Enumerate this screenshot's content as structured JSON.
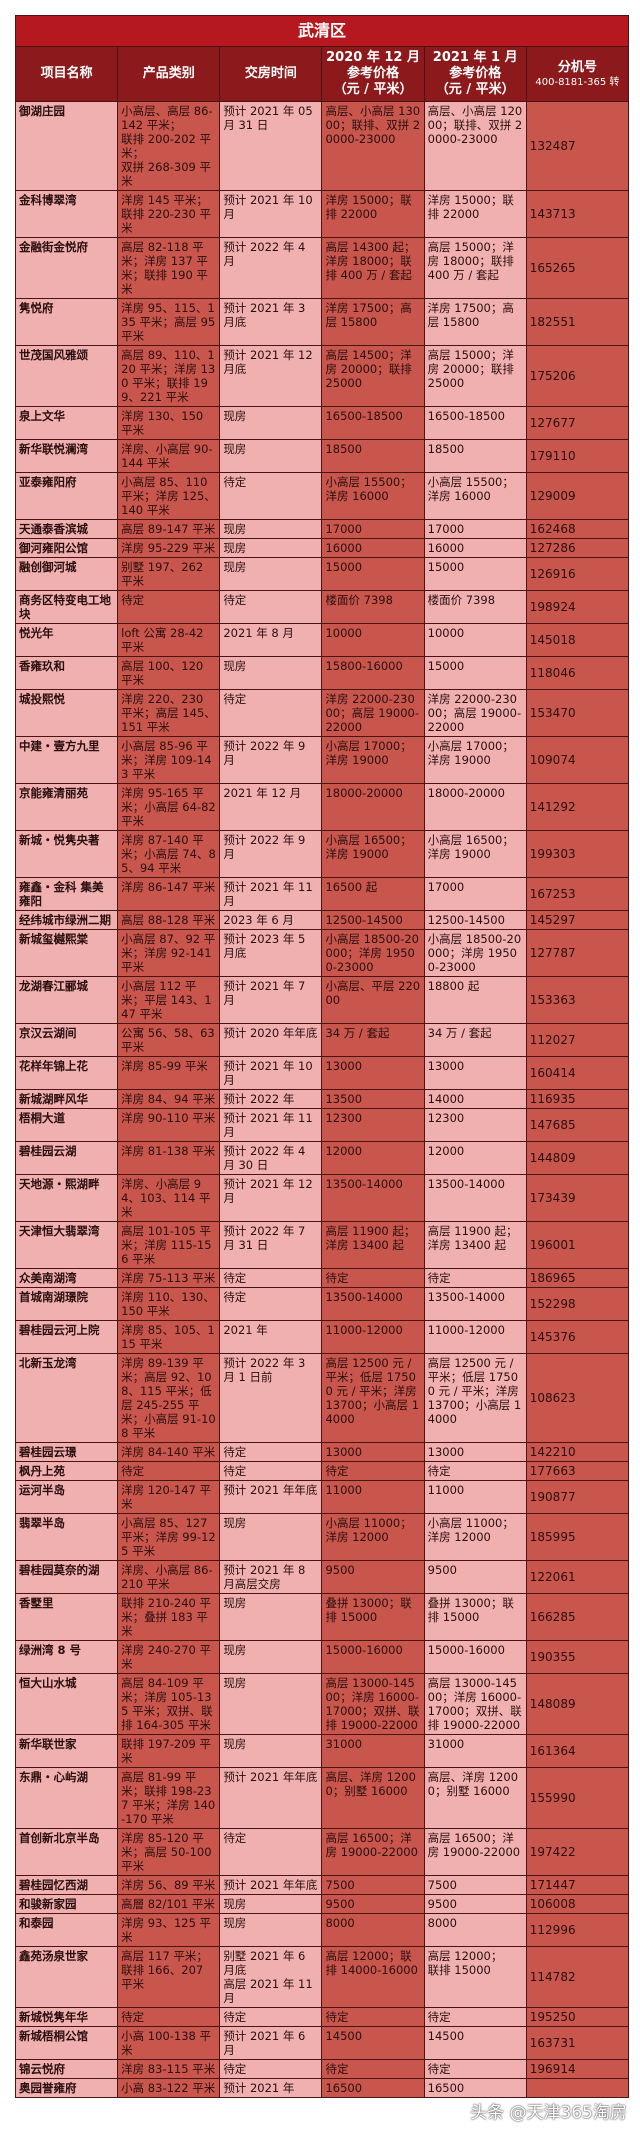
{
  "title": "武清区",
  "headers": [
    "项目名称",
    "产品类别",
    "交房时间",
    "2020 年 12 月\n参考价格\n（元 / 平米）",
    "2021 年 1 月\n参考价格\n（元 / 平米）",
    "分机号"
  ],
  "extension_note": "400-8181-365 转",
  "colors": {
    "title_bg": "#b5191f",
    "header_bg": "#8c1a1c",
    "light_col": "#f1b0b0",
    "dark_col": "#c8564d"
  },
  "rows": [
    [
      "御湖庄园",
      "小高层、高层 86-142 平米；\n联排 200-202 平米；\n双拼 268-309 平米",
      "预计 2021 年 05 月 31 日",
      "高层、小高层 13000；联排、双拼 20000-23000",
      "高层、小高层 12000；联排、双拼 20000-23000",
      "132487"
    ],
    [
      "金科博翠湾",
      "洋房 145 平米；联排 220-230 平米",
      "预计 2021 年 10 月",
      "洋房 15000；联排 22000",
      "洋房 15000；联排 22000",
      "143713"
    ],
    [
      "金融街金悦府",
      "高层 82-118 平米；洋房 137 平米；联排 190 平米",
      "预计 2022 年 4 月",
      "高层 14300 起；洋房 18000；联排 400 万 / 套起",
      "高层 15000；洋房 18000；联排 400 万 / 套起",
      "165265"
    ],
    [
      "隽悦府",
      "洋房 95、115、135 平米；高层 95 平米",
      "预计 2021 年 3 月底",
      "洋房 17500；高层 15800",
      "洋房 17500；高层 15800",
      "182551"
    ],
    [
      "世茂国风雅颂",
      "高层 89、110、120 平米；洋房 130 平米；联排 199、221 平米",
      "预计 2021 年 12 月底",
      "高层 14500；洋房 20000；联排 25000",
      "高层 15000；洋房 20000；联排 25000",
      "175206"
    ],
    [
      "泉上文华",
      "洋房 130、150 平米",
      "现房",
      "16500-18500",
      "16500-18500",
      "127677"
    ],
    [
      "新华联悦澜湾",
      "洋房、小高层 90-144 平米",
      "现房",
      "18500",
      "18500",
      "179110"
    ],
    [
      "亚泰雍阳府",
      "小高层 85、110 平米；洋房 125、140 平米",
      "待定",
      "小高层 15500；洋房 16000",
      "小高层 15500；洋房 16000",
      "129009"
    ],
    [
      "天通泰香滨城",
      "高层 89-147 平米",
      "现房",
      "17000",
      "17000",
      "162468"
    ],
    [
      "御河雍阳公馆",
      "洋房 95-229 平米",
      "现房",
      "16000",
      "16000",
      "127286"
    ],
    [
      "融创御河城",
      "别墅 197、262 平米",
      "现房",
      "15000",
      "15000",
      "126916"
    ],
    [
      "商务区特变电工地块",
      "待定",
      "待定",
      "楼面价 7398",
      "楼面价 7398",
      "198924"
    ],
    [
      "悦光年",
      "loft 公寓 28-42 平米",
      "2021 年 8 月",
      "10000",
      "10000",
      "145018"
    ],
    [
      "香雍玖和",
      "高层 100、120 平米",
      "现房",
      "15800-16000",
      "15000",
      "118046"
    ],
    [
      "城投熙悦",
      "洋房 220、230 平米；高层 145、151 平米",
      "待定",
      "洋房 22000-23000；高层 19000-22000",
      "洋房 22000-23000；高层 19000-22000",
      "153470"
    ],
    [
      "中建・壹方九里",
      "小高层 85-96 平米；洋房 109-143 平米",
      "预计 2022 年 9 月",
      "小高层 17000；洋房 19000",
      "小高层 17000；洋房 19000",
      "109074"
    ],
    [
      "京能雍清丽苑",
      "洋房 95-165 平米；小高层 64-82 平米",
      "2021 年 12 月",
      "18000-20000",
      "18000-20000",
      "141292"
    ],
    [
      "新城・悦隽央著",
      "洋房 87-140 平米；小高层 74、85、94 平米",
      "预计 2022 年 9 月",
      "小高层 16500；洋房 19000",
      "小高层 16500；洋房 19000",
      "199303"
    ],
    [
      "雍鑫・金科 集美雍阳",
      "洋房 86-147 平米",
      "预计 2021 年 11 月",
      "16500 起",
      "17000",
      "167253"
    ],
    [
      "经纬城市绿洲二期",
      "高层 88-128 平米",
      "2023 年 6 月",
      "12500-14500",
      "12500-14500",
      "145297"
    ],
    [
      "新城玺樾熙棠",
      "小高层 87、92 平米；洋房 92-141 平米",
      "预计 2023 年 5 月底",
      "小高层 18500-20000；洋房 19500-23000",
      "小高层 18500-20000；洋房 19500-23000",
      "127787"
    ],
    [
      "龙湖春江郦城",
      "小高层 112 平米；平层 143、147 平米",
      "预计 2021 年 7 月",
      "小高层、平层 22000",
      "18800 起",
      "153363"
    ],
    [
      "京汉云湖间",
      "公寓 56、58、63 平米",
      "预计 2020 年年底",
      "34 万 / 套起",
      "34 万 / 套起",
      "112027"
    ],
    [
      "花样年锦上花",
      "洋房 85-99 平米",
      "预计 2021 年 10 月",
      "13000",
      "13000",
      "160414"
    ],
    [
      "新城湖畔风华",
      "洋房 84、94 平米",
      "预计 2022 年",
      "13500",
      "14000",
      "116935"
    ],
    [
      "梧桐大道",
      "洋房 90-110 平米",
      "预计 2021 年 11 月",
      "12300",
      "12300",
      "147685"
    ],
    [
      "碧桂园云湖",
      "洋房 81-138 平米",
      "预计 2022 年 4 月 30 日",
      "12000",
      "12000",
      "144809"
    ],
    [
      "天地源・熙湖畔",
      "洋房、小高层 94、103、114 平米",
      "预计 2021 年 12 月",
      "13500-14000",
      "13500-14000",
      "173439"
    ],
    [
      "天津恒大翡翠湾",
      "高层 101-105 平米；洋房 115-156 平米",
      "预计 2022 年 7 月 31 日",
      "高层 11900 起；洋房 13400 起",
      "高层 11900 起；洋房 13400 起",
      "196001"
    ],
    [
      "众美南湖湾",
      "洋房 75-113 平米",
      "待定",
      "待定",
      "待定",
      "186965"
    ],
    [
      "首城南湖璟院",
      "洋房 110、130、150 平米",
      "待定",
      "13500-14000",
      "13500-14000",
      "152298"
    ],
    [
      "碧桂园云河上院",
      "洋房 85、105、115 平米",
      "2021 年",
      "11000-12000",
      "11000-12000",
      "145376"
    ],
    [
      "北新玉龙湾",
      "洋房 89-139 平米；高层 92、108、115 平米；低层 245-255 平米；小高层 91-108 平米",
      "预计 2022 年 3 月 1 日前",
      "高层 12500 元 / 平米；低层 17500 元 / 平米；洋房 13700；小高层 14000",
      "高层 12500 元 / 平米；低层 17500 元 / 平米；洋房 13700；小高层 14000",
      "108623"
    ],
    [
      "碧桂园云璟",
      "洋房 84-140 平米",
      "待定",
      "13000",
      "13000",
      "142210"
    ],
    [
      "枫丹上苑",
      "待定",
      "待定",
      "待定",
      "待定",
      "177663"
    ],
    [
      "运河半岛",
      "洋房 120-147 平米",
      "预计 2021 年年底",
      "11000",
      "11000",
      "190877"
    ],
    [
      "翡翠半岛",
      "小高层 85、127 平米；洋房 99-125 平米",
      "现房",
      "小高层 11000；洋房 12000",
      "小高层 11000；洋房 12000",
      "185995"
    ],
    [
      "碧桂园莫奈的湖",
      "洋房、小高层 86-210 平米",
      "预计 2021 年 8 月高层交房",
      "9500",
      "9500",
      "122061"
    ],
    [
      "香墅里",
      "联排 210-240 平米；叠拼 183 平米",
      "现房",
      "叠拼 13000；联排 15000",
      "叠拼 13000；联排 15000",
      "166285"
    ],
    [
      "绿洲湾 8 号",
      "洋房 240-270 平米",
      "现房",
      "15000-16000",
      "15000-16000",
      "190355"
    ],
    [
      "恒大山水城",
      "高层 84-109 平米；洋房 105-135 平米；双拼、联排 164-305 平米",
      "现房",
      "高层 13000-14500；洋房 16000-17000；双拼、联排 19000-22000",
      "高层 13000-14500；洋房 16000-17000；双拼、联排 19000-22000",
      "148089"
    ],
    [
      "新华联世家",
      "联排 197-209 平米",
      "现房",
      "31000",
      "31000",
      "161364"
    ],
    [
      "东鼎・心屿湖",
      "高层 81-99 平米；联排 198-237 平米；洋房 140-170 平米",
      "预计 2021 年年底",
      "高层、洋房 12000；别墅 16000",
      "高层、洋房 12000；别墅 16000",
      "155990"
    ],
    [
      "首创新北京半岛",
      "洋房 85-120 平米；高层 50-100 平米",
      "待定",
      "高层 16500；洋房 19000-22000",
      "高层 16500；洋房 19000-22000",
      "197422"
    ],
    [
      "碧桂园忆西湖",
      "洋房 56、89 平米",
      "预计 2021 年年底",
      "7500",
      "7500",
      "171447"
    ],
    [
      "和骏新家园",
      "高層 82/101 平米",
      "现房",
      "9500",
      "9500",
      "106008"
    ],
    [
      "和泰园",
      "洋房 93、125 平米",
      "现房",
      "8000",
      "8000",
      "112996"
    ],
    [
      "鑫苑汤泉世家",
      "高层 117 平米；\n联排 166、207 平米",
      "别墅 2021 年 6 月底\n高层 2021 年 11 月",
      "高层 12000；联排 14000-16000",
      "高层 12000；\n联排 15000",
      "114782"
    ],
    [
      "新城悦隽年华",
      "待定",
      "待定",
      "待定",
      "待定",
      "195250"
    ],
    [
      "新城梧桐公馆",
      "小高 100-138 平米",
      "预计 2021 年 6 月",
      "14500",
      "14500",
      "163731"
    ],
    [
      "锦云悦府",
      "洋房 83-115 平米",
      "待定",
      "待定",
      "待定",
      "196914"
    ],
    [
      "奥园誉雍府",
      "小高 83-122 平米",
      "预计 2021 年",
      "16500",
      "16500",
      ""
    ]
  ],
  "watermark": "头条 @天津365淘房"
}
